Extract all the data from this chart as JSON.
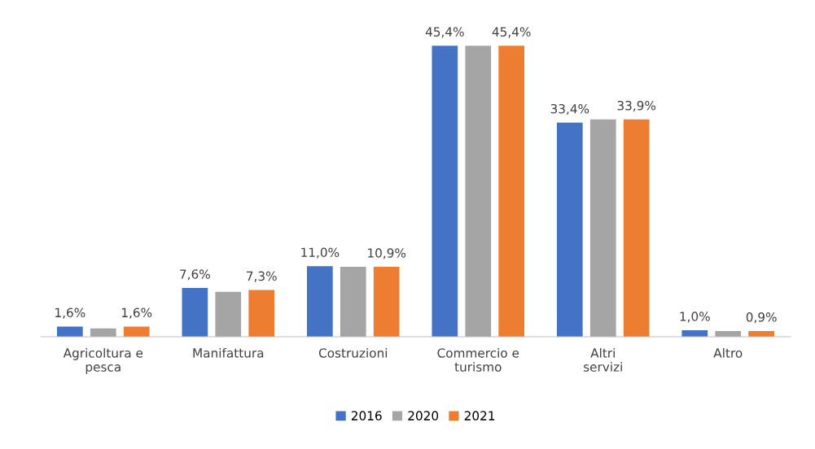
{
  "chart_data": {
    "type": "bar",
    "categories": [
      "Agricoltura e pesca",
      "Manifattura",
      "Costruzioni",
      "Commercio e turismo",
      "Altri servizi",
      "Altro"
    ],
    "series": [
      {
        "name": "2016",
        "color": "#4472c4",
        "values": [
          1.6,
          7.6,
          11.0,
          45.4,
          33.4,
          1.0
        ],
        "value_labels": [
          "1,6%",
          "7,6%",
          "11,0%",
          "45,4%",
          "33,4%",
          "1,0%"
        ]
      },
      {
        "name": "2020",
        "color": "#a5a5a5",
        "values": [
          1.3,
          7.0,
          10.9,
          45.4,
          33.9,
          0.9
        ],
        "value_labels": [
          null,
          null,
          null,
          null,
          null,
          null
        ]
      },
      {
        "name": "2021",
        "color": "#ed7d31",
        "values": [
          1.6,
          7.3,
          10.9,
          45.4,
          33.9,
          0.9
        ],
        "value_labels": [
          "1,6%",
          "7,3%",
          "10,9%",
          "45,4%",
          "33,9%",
          "0,9%"
        ]
      }
    ],
    "legend": "bottom"
  }
}
